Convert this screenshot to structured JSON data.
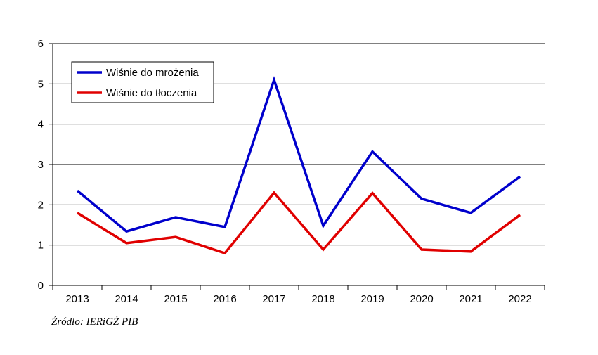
{
  "chart_data": {
    "type": "line",
    "title": "",
    "xlabel": "",
    "ylabel": "",
    "categories": [
      "2013",
      "2014",
      "2015",
      "2016",
      "2017",
      "2018",
      "2019",
      "2020",
      "2021",
      "2022"
    ],
    "ylim": [
      0,
      6
    ],
    "yticks": [
      "0",
      "1",
      "2",
      "3",
      "4",
      "5",
      "6"
    ],
    "grid": true,
    "legend_position": "top-left",
    "series": [
      {
        "name": "Wiśnie do mrożenia",
        "color": "#0000cc",
        "values": [
          2.35,
          1.34,
          1.69,
          1.45,
          5.1,
          1.48,
          3.32,
          2.15,
          1.8,
          2.7
        ]
      },
      {
        "name": "Wiśnie do tłoczenia",
        "color": "#e00000",
        "values": [
          1.8,
          1.05,
          1.2,
          0.8,
          2.3,
          0.89,
          2.29,
          0.89,
          0.84,
          1.75
        ]
      }
    ]
  },
  "source": "Źródło: IERiGŻ PIB"
}
